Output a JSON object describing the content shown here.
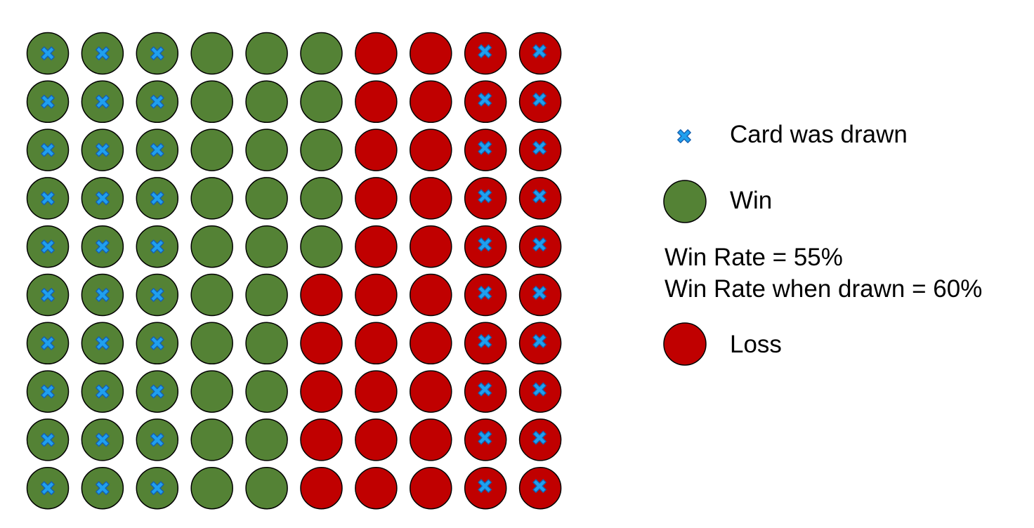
{
  "colors": {
    "win": "#548235",
    "loss": "#c00000",
    "cross": "#1fa0ef",
    "cross_stroke": "#1560b0",
    "outline": "#000000"
  },
  "grid": {
    "rows": 10,
    "columns": [
      {
        "outcomes": [
          "win",
          "win",
          "win",
          "win",
          "win",
          "win",
          "win",
          "win",
          "win",
          "win"
        ],
        "drawn": true
      },
      {
        "outcomes": [
          "win",
          "win",
          "win",
          "win",
          "win",
          "win",
          "win",
          "win",
          "win",
          "win"
        ],
        "drawn": true
      },
      {
        "outcomes": [
          "win",
          "win",
          "win",
          "win",
          "win",
          "win",
          "win",
          "win",
          "win",
          "win"
        ],
        "drawn": true
      },
      {
        "outcomes": [
          "win",
          "win",
          "win",
          "win",
          "win",
          "win",
          "win",
          "win",
          "win",
          "win"
        ],
        "drawn": false
      },
      {
        "outcomes": [
          "win",
          "win",
          "win",
          "win",
          "win",
          "win",
          "win",
          "win",
          "win",
          "win"
        ],
        "drawn": false
      },
      {
        "outcomes": [
          "win",
          "win",
          "win",
          "win",
          "win",
          "loss",
          "loss",
          "loss",
          "loss",
          "loss"
        ],
        "drawn": false
      },
      {
        "outcomes": [
          "loss",
          "loss",
          "loss",
          "loss",
          "loss",
          "loss",
          "loss",
          "loss",
          "loss",
          "loss"
        ],
        "drawn": false
      },
      {
        "outcomes": [
          "loss",
          "loss",
          "loss",
          "loss",
          "loss",
          "loss",
          "loss",
          "loss",
          "loss",
          "loss"
        ],
        "drawn": false
      },
      {
        "outcomes": [
          "loss",
          "loss",
          "loss",
          "loss",
          "loss",
          "loss",
          "loss",
          "loss",
          "loss",
          "loss"
        ],
        "drawn": true
      },
      {
        "outcomes": [
          "loss",
          "loss",
          "loss",
          "loss",
          "loss",
          "loss",
          "loss",
          "loss",
          "loss",
          "loss"
        ],
        "drawn": true
      }
    ]
  },
  "legend": {
    "drawn_label": "Card was drawn",
    "win_label": "Win",
    "win_rate": "Win Rate = 55%",
    "win_rate_drawn": "Win Rate when drawn = 60%",
    "loss_label": "Loss"
  }
}
